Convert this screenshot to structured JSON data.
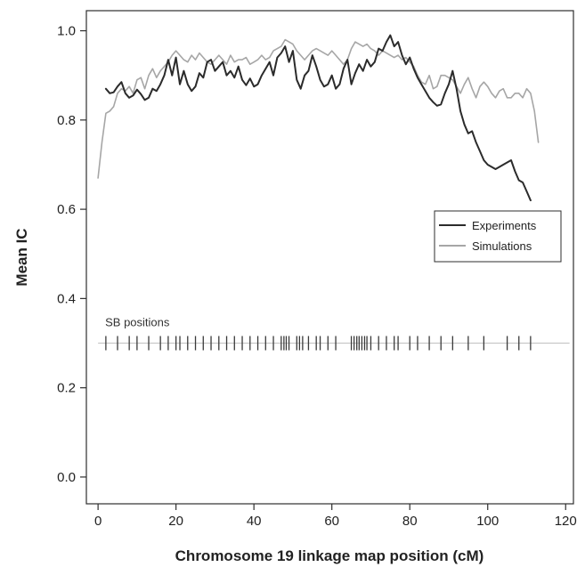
{
  "chart_data": {
    "type": "line",
    "title": "",
    "xlabel": "Chromosome 19 linkage map position (cM)",
    "ylabel": "Mean IC",
    "xlim": [
      -3,
      122
    ],
    "ylim": [
      -0.06,
      1.045
    ],
    "x_ticks": [
      0,
      20,
      40,
      60,
      80,
      100,
      120
    ],
    "x_tick_labels": [
      "0",
      "20",
      "40",
      "60",
      "80",
      "100",
      "120"
    ],
    "y_ticks": [
      0.0,
      0.2,
      0.4,
      0.6,
      0.8,
      1.0
    ],
    "y_tick_labels": [
      "0.0",
      "0.2",
      "0.4",
      "0.6",
      "0.8",
      "1.0"
    ],
    "grid": false,
    "legend": {
      "position": "right",
      "entries": [
        "Experiments",
        "Simulations"
      ]
    },
    "colors": {
      "experiments": "#2b2b2b",
      "simulations": "#a6a6a6",
      "sb_line": "#c8c8c8",
      "sb_tick": "#3a3a3a"
    },
    "series": [
      {
        "name": "Experiments",
        "points": [
          [
            2,
            0.87
          ],
          [
            3,
            0.86
          ],
          [
            4,
            0.862
          ],
          [
            5,
            0.875
          ],
          [
            6,
            0.885
          ],
          [
            7,
            0.86
          ],
          [
            8,
            0.85
          ],
          [
            9,
            0.855
          ],
          [
            10,
            0.868
          ],
          [
            11,
            0.858
          ],
          [
            12,
            0.845
          ],
          [
            13,
            0.85
          ],
          [
            14,
            0.87
          ],
          [
            15,
            0.865
          ],
          [
            16,
            0.88
          ],
          [
            17,
            0.9
          ],
          [
            18,
            0.935
          ],
          [
            19,
            0.9
          ],
          [
            20,
            0.94
          ],
          [
            21,
            0.88
          ],
          [
            22,
            0.91
          ],
          [
            23,
            0.88
          ],
          [
            24,
            0.865
          ],
          [
            25,
            0.875
          ],
          [
            26,
            0.905
          ],
          [
            27,
            0.895
          ],
          [
            28,
            0.93
          ],
          [
            29,
            0.935
          ],
          [
            30,
            0.91
          ],
          [
            31,
            0.92
          ],
          [
            32,
            0.93
          ],
          [
            33,
            0.9
          ],
          [
            34,
            0.91
          ],
          [
            35,
            0.895
          ],
          [
            36,
            0.92
          ],
          [
            37,
            0.89
          ],
          [
            38,
            0.878
          ],
          [
            39,
            0.893
          ],
          [
            40,
            0.875
          ],
          [
            41,
            0.88
          ],
          [
            42,
            0.9
          ],
          [
            43,
            0.915
          ],
          [
            44,
            0.93
          ],
          [
            45,
            0.9
          ],
          [
            46,
            0.94
          ],
          [
            47,
            0.95
          ],
          [
            48,
            0.965
          ],
          [
            49,
            0.93
          ],
          [
            50,
            0.955
          ],
          [
            51,
            0.89
          ],
          [
            52,
            0.87
          ],
          [
            53,
            0.9
          ],
          [
            54,
            0.91
          ],
          [
            55,
            0.945
          ],
          [
            56,
            0.92
          ],
          [
            57,
            0.89
          ],
          [
            58,
            0.875
          ],
          [
            59,
            0.88
          ],
          [
            60,
            0.9
          ],
          [
            61,
            0.87
          ],
          [
            62,
            0.88
          ],
          [
            63,
            0.915
          ],
          [
            64,
            0.935
          ],
          [
            65,
            0.88
          ],
          [
            66,
            0.905
          ],
          [
            67,
            0.925
          ],
          [
            68,
            0.91
          ],
          [
            69,
            0.935
          ],
          [
            70,
            0.92
          ],
          [
            71,
            0.93
          ],
          [
            72,
            0.96
          ],
          [
            73,
            0.955
          ],
          [
            74,
            0.975
          ],
          [
            75,
            0.99
          ],
          [
            76,
            0.965
          ],
          [
            77,
            0.975
          ],
          [
            78,
            0.945
          ],
          [
            79,
            0.925
          ],
          [
            80,
            0.94
          ],
          [
            81,
            0.915
          ],
          [
            82,
            0.895
          ],
          [
            83,
            0.88
          ],
          [
            84,
            0.865
          ],
          [
            85,
            0.85
          ],
          [
            86,
            0.84
          ],
          [
            87,
            0.832
          ],
          [
            88,
            0.835
          ],
          [
            89,
            0.86
          ],
          [
            90,
            0.88
          ],
          [
            91,
            0.91
          ],
          [
            92,
            0.87
          ],
          [
            93,
            0.82
          ],
          [
            94,
            0.79
          ],
          [
            95,
            0.77
          ],
          [
            96,
            0.775
          ],
          [
            97,
            0.75
          ],
          [
            98,
            0.73
          ],
          [
            99,
            0.71
          ],
          [
            100,
            0.7
          ],
          [
            101,
            0.695
          ],
          [
            102,
            0.69
          ],
          [
            103,
            0.695
          ],
          [
            104,
            0.7
          ],
          [
            105,
            0.705
          ],
          [
            106,
            0.71
          ],
          [
            107,
            0.685
          ],
          [
            108,
            0.665
          ],
          [
            109,
            0.66
          ],
          [
            110,
            0.64
          ],
          [
            111,
            0.62
          ]
        ]
      },
      {
        "name": "Simulations",
        "points": [
          [
            0,
            0.67
          ],
          [
            1,
            0.75
          ],
          [
            2,
            0.815
          ],
          [
            3,
            0.82
          ],
          [
            4,
            0.83
          ],
          [
            5,
            0.86
          ],
          [
            6,
            0.87
          ],
          [
            7,
            0.865
          ],
          [
            8,
            0.875
          ],
          [
            9,
            0.86
          ],
          [
            10,
            0.89
          ],
          [
            11,
            0.895
          ],
          [
            12,
            0.87
          ],
          [
            13,
            0.9
          ],
          [
            14,
            0.915
          ],
          [
            15,
            0.895
          ],
          [
            16,
            0.91
          ],
          [
            17,
            0.92
          ],
          [
            18,
            0.93
          ],
          [
            19,
            0.945
          ],
          [
            20,
            0.955
          ],
          [
            21,
            0.945
          ],
          [
            22,
            0.935
          ],
          [
            23,
            0.93
          ],
          [
            24,
            0.945
          ],
          [
            25,
            0.935
          ],
          [
            26,
            0.95
          ],
          [
            27,
            0.94
          ],
          [
            28,
            0.93
          ],
          [
            29,
            0.925
          ],
          [
            30,
            0.935
          ],
          [
            31,
            0.945
          ],
          [
            32,
            0.935
          ],
          [
            33,
            0.925
          ],
          [
            34,
            0.945
          ],
          [
            35,
            0.93
          ],
          [
            36,
            0.935
          ],
          [
            37,
            0.935
          ],
          [
            38,
            0.94
          ],
          [
            39,
            0.925
          ],
          [
            40,
            0.93
          ],
          [
            41,
            0.935
          ],
          [
            42,
            0.945
          ],
          [
            43,
            0.935
          ],
          [
            44,
            0.94
          ],
          [
            45,
            0.955
          ],
          [
            46,
            0.96
          ],
          [
            47,
            0.965
          ],
          [
            48,
            0.98
          ],
          [
            49,
            0.975
          ],
          [
            50,
            0.97
          ],
          [
            51,
            0.955
          ],
          [
            52,
            0.945
          ],
          [
            53,
            0.935
          ],
          [
            54,
            0.945
          ],
          [
            55,
            0.955
          ],
          [
            56,
            0.96
          ],
          [
            57,
            0.955
          ],
          [
            58,
            0.95
          ],
          [
            59,
            0.945
          ],
          [
            60,
            0.955
          ],
          [
            61,
            0.945
          ],
          [
            62,
            0.935
          ],
          [
            63,
            0.925
          ],
          [
            64,
            0.935
          ],
          [
            65,
            0.96
          ],
          [
            66,
            0.975
          ],
          [
            67,
            0.97
          ],
          [
            68,
            0.965
          ],
          [
            69,
            0.97
          ],
          [
            70,
            0.96
          ],
          [
            71,
            0.955
          ],
          [
            72,
            0.945
          ],
          [
            73,
            0.955
          ],
          [
            74,
            0.95
          ],
          [
            75,
            0.945
          ],
          [
            76,
            0.94
          ],
          [
            77,
            0.945
          ],
          [
            78,
            0.935
          ],
          [
            79,
            0.94
          ],
          [
            80,
            0.93
          ],
          [
            81,
            0.92
          ],
          [
            82,
            0.9
          ],
          [
            83,
            0.885
          ],
          [
            84,
            0.88
          ],
          [
            85,
            0.9
          ],
          [
            86,
            0.87
          ],
          [
            87,
            0.875
          ],
          [
            88,
            0.9
          ],
          [
            89,
            0.9
          ],
          [
            90,
            0.895
          ],
          [
            91,
            0.89
          ],
          [
            92,
            0.875
          ],
          [
            93,
            0.86
          ],
          [
            94,
            0.88
          ],
          [
            95,
            0.895
          ],
          [
            96,
            0.87
          ],
          [
            97,
            0.85
          ],
          [
            98,
            0.875
          ],
          [
            99,
            0.885
          ],
          [
            100,
            0.875
          ],
          [
            101,
            0.86
          ],
          [
            102,
            0.85
          ],
          [
            103,
            0.865
          ],
          [
            104,
            0.87
          ],
          [
            105,
            0.85
          ],
          [
            106,
            0.85
          ],
          [
            107,
            0.86
          ],
          [
            108,
            0.86
          ],
          [
            109,
            0.85
          ],
          [
            110,
            0.87
          ],
          [
            111,
            0.86
          ],
          [
            112,
            0.82
          ],
          [
            113,
            0.75
          ]
        ]
      }
    ],
    "annotations": [
      {
        "text": "SB positions",
        "y": 0.3,
        "x_range": [
          0,
          121
        ],
        "tick_positions": [
          2,
          5,
          8,
          10,
          13,
          16,
          18,
          20,
          21,
          23,
          25,
          27,
          29,
          31,
          33,
          35,
          37,
          39,
          41,
          43,
          45,
          47,
          47.7,
          48.3,
          49,
          51,
          51.7,
          52.5,
          54,
          56,
          57,
          59,
          61,
          65,
          65.7,
          66.4,
          67,
          67.7,
          68.4,
          69,
          70,
          72,
          74,
          76,
          77,
          80,
          82,
          85,
          88,
          91,
          95,
          99,
          105,
          108,
          111
        ]
      }
    ]
  }
}
